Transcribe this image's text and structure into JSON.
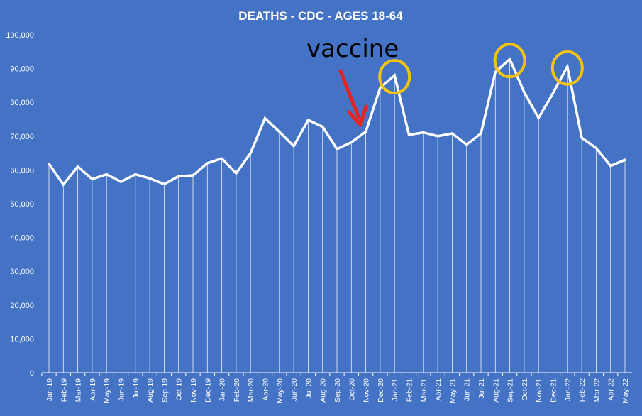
{
  "chart_data": {
    "type": "line",
    "title": "DEATHS - CDC - AGES 18-64",
    "xlabel": "",
    "ylabel": "",
    "ylim": [
      0,
      100000
    ],
    "yticks": [
      "0",
      "10,000",
      "20,000",
      "30,000",
      "40,000",
      "50,000",
      "60,000",
      "70,000",
      "80,000",
      "90,000",
      "100,000"
    ],
    "categories": [
      "Jan-19",
      "Feb-19",
      "Mar-19",
      "Apr-19",
      "May-19",
      "Jun-19",
      "Jul-19",
      "Aug-19",
      "Sep-19",
      "Oct-19",
      "Nov-19",
      "Dec-19",
      "Jan-20",
      "Feb-20",
      "Mar-20",
      "Apr-20",
      "May-20",
      "Jun-20",
      "Jul-20",
      "Aug-20",
      "Sep-20",
      "Oct-20",
      "Nov-20",
      "Dec-20",
      "Jan-21",
      "Feb-21",
      "Mar-21",
      "Apr-21",
      "May-21",
      "Jun-21",
      "Jul-21",
      "Aug-21",
      "Sep-21",
      "Oct-21",
      "Nov-21",
      "Dec-21",
      "Jan-22",
      "Feb-22",
      "Mar-22",
      "Apr-22",
      "May-22"
    ],
    "series": [
      {
        "values": [
          61800,
          55700,
          61000,
          57300,
          58700,
          56500,
          58700,
          57500,
          55800,
          58100,
          58400,
          62000,
          63400,
          59000,
          65000,
          75300,
          71300,
          67100,
          74800,
          72800,
          66200,
          68200,
          71300,
          84300,
          88000,
          70400,
          71100,
          70000,
          70800,
          67500,
          70800,
          89000,
          92800,
          83000,
          75400,
          82700,
          90600,
          69500,
          66500,
          61200,
          63000
        ],
        "color": "#FFFFFF",
        "drop_lines": true
      }
    ],
    "grid": false,
    "legend": "none",
    "annotations": {
      "text": "vaccine",
      "arrow_color": "#E8231E",
      "circle_color": "#F2C30F",
      "circled_points": [
        "Jan-21",
        "Sep-21",
        "Jan-22"
      ],
      "arrow_target": "Nov-20"
    }
  }
}
